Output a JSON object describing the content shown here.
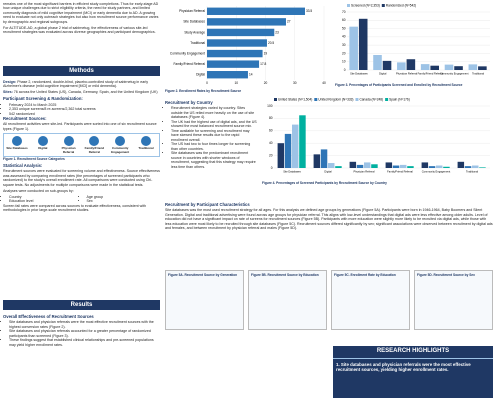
{
  "intro": {
    "paragraphs": [
      "remains one of the most significant barriers in efficient study completions. Thus for early-stage AD how unique challenges due to strict eligibility criteria, the need for study partners, and limited community diagnosis of mild cognitive impairment (MCI) or early dementia due to AD. A growing need to evaluate not only outreach strategies but also how recruitment source performance varies by demographic and regional subgroups.",
      "For ALTITUDE-AD, a global phase 2 trial of sabirnetug, the effectiveness of various site-led recruitment strategies was evaluated across diverse geographies and participant demographics."
    ]
  },
  "methods": {
    "title": "Methods",
    "design": {
      "label": "Design:",
      "text": "Phase 2, randomized, double-blind, placebo-controlled study of sabirnetug in early Alzheimer's disease (mild cognitive impairment [MCI] or mild dementia)."
    },
    "sites": {
      "label": "Sites:",
      "text": "76 across the United States (US), Canada, Germany, Spain, and the United Kingdom (UK)"
    },
    "screening": {
      "heading": "Participant Screening & Randomization:",
      "bullets": [
        "February 2024 to March 2025",
        "2,353 unique screens/8 re-screens/2,362 total screens",
        "542 randomized"
      ]
    },
    "sources": {
      "heading": "Recruitment Sources:",
      "text": "All recruitment activities were site-led. Participants were sorted into one of six recruitment source types (Figure 1).",
      "icons": [
        "Site Databases",
        "Digital",
        "Physician Referral",
        "Family/Friend Referral",
        "Community Engagement",
        "Traditional"
      ],
      "caption": "Figure 1. Recruitment Source Categories"
    },
    "stats": {
      "heading": "Statistical Analysis:",
      "text": "Recruitment sources were evaluated for screening volume and effectiveness. Source effectiveness was assessed by comparing enrollment rates (the percentages of screened participants who randomized) to the study's overall enrollment rate. All comparisons were conducted using Chi-square tests. No adjustments for multiple comparisons were made in the statistical tests.",
      "subgroups_intro": "Analyses were conducted on sub-groups by:",
      "subgroups": [
        "Country",
        "Education level",
        "Age group",
        "Sex"
      ],
      "text2": "Screen fail rates were compared across sources to evaluate effectiveness, consistent with methodologies in prior large-scale recruitment studies."
    }
  },
  "results": {
    "title": "Results",
    "overall": {
      "heading": "Overall Effectiveness of Recruitment Sources",
      "bullets": [
        "Site databases and physician referrals were the most effective recruitment sources with the highest conversion rates (Figure 2).",
        "Site databases and physician referrals accounted for a greater percentage of randomized participants than screened (Figure 3).",
        "These findings suggest that established clinical relationships and pre-screened populations may yield higher enrollment rates."
      ]
    },
    "country": {
      "heading": "Recruitment by Country",
      "bullets": [
        "Recruitment strategies varied by country. Sites outside the US relied more heavily on the use of site databases (Figure 4).",
        "The UK had the highest use of digital ads, and the US showed the most balanced recruitment source mix.",
        "Time available for screening and recruitment may have skewed these results due to the rapid enrollment overall.",
        "The US had two to four times longer for screening than other countries.",
        "Site databases was the predominant recruitment source in countries with shorter windows of recruitment, suggesting that this strategy may require less time than others."
      ]
    },
    "characteristics": {
      "heading": "Recruitment by Participant Characteristics",
      "text": "Site databases was the most used recruitment strategy for all ages. For this analysis we defined age groups by generations (Figure 5A). Participants were born in 1946-1964, Baby Boomers and Silent Generation. Digital and traditional advertising were found across age groups for physician referral. This aligns with low-level understandings that digital ads were less effective among older adults. Level of education did not have a significant impact on rate of screens for recruitment sources (Figure 5B). Participants with more education were slightly more likely to be recruited via digital ads, while those with less education were most likely to be recruited through site databases (Figure 5C). Recruitment sources differed significantly by sex; significant associations were observed between recruitment by digital ads and females, and between recruitment by physician referral and males (Figure 5D)."
    },
    "fig5_captions": [
      "Figure 5A. Recruitment Source by Generation",
      "Figure 5B. Recruitment Source by Education",
      "Figure 5C. Enrollment Rate by Education",
      "Figure 5D. Recruitment Source by Sex"
    ]
  },
  "highlights": {
    "title": "RESEARCH HIGHLIGHTS",
    "items": [
      "1. Site databases and physician referrals were the most effective recruitment sources, yielding higher enrollment rates."
    ]
  },
  "chart_data": [
    {
      "type": "bar",
      "orientation": "horizontal",
      "caption": "Figure 2. Enrollment Rates by Recruitment Source",
      "categories": [
        "Physician Referral",
        "Site Databases",
        "Study Average",
        "Traditional",
        "Community Engagement",
        "Family/Friend Referral",
        "Digital"
      ],
      "values": [
        33.5,
        27,
        23,
        20.5,
        19,
        17.8,
        14
      ],
      "color": "#2e75b6",
      "xlim": [
        0,
        40
      ],
      "xticks": [
        0,
        10,
        20,
        30,
        40
      ]
    },
    {
      "type": "bar",
      "orientation": "vertical",
      "caption": "Figure 3. Percentages of Participants Screened and Enrolled by Recruitment Source",
      "categories": [
        "Site Databases",
        "Digital",
        "Physician Referral",
        "Family/Friend Referral",
        "Community Engagement",
        "Traditional"
      ],
      "series": [
        {
          "name": "Screened (N=2,353)",
          "color": "#9dc3e6",
          "values": [
            52.3,
            18.1,
            9.2,
            7.1,
            6.5,
            6.8
          ]
        },
        {
          "name": "Randomized (N=542)",
          "color": "#1f3864",
          "values": [
            61.8,
            11,
            13,
            5.2,
            4.6,
            4.4
          ]
        }
      ],
      "ylim": [
        0,
        70
      ],
      "yticks": [
        0,
        10,
        20,
        30,
        40,
        50,
        60,
        70
      ]
    },
    {
      "type": "bar",
      "orientation": "vertical",
      "caption": "Figure 4. Percentages of Screened Participants by Recruitment Source by Country",
      "categories": [
        "Site Databases",
        "Digital",
        "Physician Referral",
        "Family/Friend Referral",
        "Community Engagement",
        "Traditional"
      ],
      "series": [
        {
          "name": "United States (N=1,504)",
          "color": "#1f3864",
          "values": [
            40,
            22,
            10,
            9,
            9,
            10
          ]
        },
        {
          "name": "United Kingdom (N=333)",
          "color": "#2e75b6",
          "values": [
            55,
            30,
            5,
            4,
            3,
            3
          ]
        },
        {
          "name": "Canada (N=248)",
          "color": "#9dc3e6",
          "values": [
            70,
            8,
            9,
            5,
            4,
            4
          ]
        },
        {
          "name": "Spain (N=176)",
          "color": "#00b0a0",
          "values": [
            85,
            3,
            6,
            3,
            2,
            1
          ]
        }
      ],
      "ylim": [
        0,
        100
      ],
      "yticks": [
        0,
        20,
        40,
        60,
        80,
        100
      ]
    }
  ]
}
